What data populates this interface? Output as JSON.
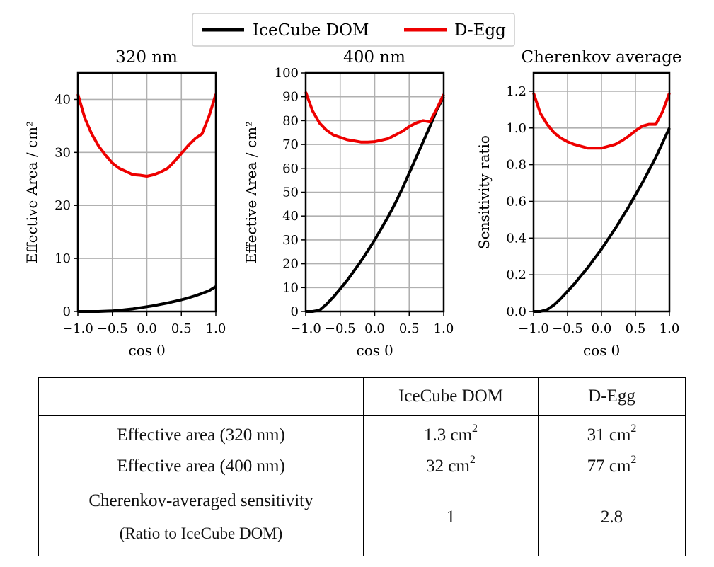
{
  "legend": [
    {
      "label": "IceCube DOM",
      "color": "#000000"
    },
    {
      "label": "D-Egg",
      "color": "#ee0000"
    }
  ],
  "chart_data": [
    {
      "type": "line",
      "title": "320 nm",
      "xlabel": "cos θ",
      "ylabel": "Effective Area / cm²",
      "xlim": [
        -1.0,
        1.0
      ],
      "ylim": [
        0,
        45
      ],
      "xticks": [
        "−1.0",
        "−0.5",
        "0.0",
        "0.5",
        "1.0"
      ],
      "xtick_values": [
        -1.0,
        -0.5,
        0.0,
        0.5,
        1.0
      ],
      "yticks": [
        "0",
        "10",
        "20",
        "30",
        "40"
      ],
      "ytick_values": [
        0,
        10,
        20,
        30,
        40
      ],
      "grid": true,
      "x": [
        -1.0,
        -0.9,
        -0.8,
        -0.7,
        -0.6,
        -0.5,
        -0.4,
        -0.3,
        -0.2,
        -0.1,
        0.0,
        0.1,
        0.2,
        0.3,
        0.4,
        0.5,
        0.6,
        0.7,
        0.8,
        0.9,
        1.0
      ],
      "series": [
        {
          "name": "IceCube DOM",
          "values": [
            0.0,
            0.0,
            0.0,
            0.0,
            0.05,
            0.1,
            0.2,
            0.35,
            0.5,
            0.7,
            0.9,
            1.1,
            1.35,
            1.6,
            1.9,
            2.2,
            2.55,
            2.95,
            3.4,
            3.9,
            4.7
          ]
        },
        {
          "name": "D-Egg",
          "values": [
            41.0,
            36.5,
            33.5,
            31.2,
            29.5,
            28.0,
            27.0,
            26.4,
            25.8,
            25.7,
            25.5,
            25.8,
            26.3,
            27.0,
            28.3,
            29.8,
            31.3,
            32.6,
            33.5,
            36.8,
            41.0
          ]
        }
      ]
    },
    {
      "type": "line",
      "title": "400 nm",
      "xlabel": "cos θ",
      "ylabel": "Effective Area / cm²",
      "xlim": [
        -1.0,
        1.0
      ],
      "ylim": [
        0,
        100
      ],
      "xticks": [
        "−1.0",
        "−0.5",
        "0.0",
        "0.5",
        "1.0"
      ],
      "xtick_values": [
        -1.0,
        -0.5,
        0.0,
        0.5,
        1.0
      ],
      "yticks": [
        "0",
        "10",
        "20",
        "30",
        "40",
        "50",
        "60",
        "70",
        "80",
        "90",
        "100"
      ],
      "ytick_values": [
        0,
        10,
        20,
        30,
        40,
        50,
        60,
        70,
        80,
        90,
        100
      ],
      "grid": true,
      "x": [
        -1.0,
        -0.9,
        -0.8,
        -0.7,
        -0.6,
        -0.5,
        -0.4,
        -0.3,
        -0.2,
        -0.1,
        0.0,
        0.1,
        0.2,
        0.3,
        0.4,
        0.5,
        0.6,
        0.7,
        0.8,
        0.9,
        1.0
      ],
      "series": [
        {
          "name": "IceCube DOM",
          "values": [
            0.0,
            0.0,
            0.5,
            3.0,
            6.0,
            9.5,
            13.0,
            17.0,
            21.0,
            25.5,
            30.0,
            35.0,
            40.0,
            45.5,
            51.5,
            58.0,
            64.5,
            71.0,
            77.5,
            84.5,
            90.0
          ]
        },
        {
          "name": "D-Egg",
          "values": [
            92.0,
            84.0,
            79.0,
            76.0,
            74.0,
            73.0,
            72.0,
            71.5,
            71.0,
            71.0,
            71.2,
            71.8,
            72.5,
            74.0,
            75.5,
            77.5,
            79.0,
            80.0,
            79.5,
            85.0,
            91.0
          ]
        }
      ]
    },
    {
      "type": "line",
      "title": "Cherenkov average",
      "xlabel": "cos θ",
      "ylabel": "Sensitivity ratio",
      "xlim": [
        -1.0,
        1.0
      ],
      "ylim": [
        0,
        1.3
      ],
      "xticks": [
        "−1.0",
        "−0.5",
        "0.0",
        "0.5",
        "1.0"
      ],
      "xtick_values": [
        -1.0,
        -0.5,
        0.0,
        0.5,
        1.0
      ],
      "yticks": [
        "0.0",
        "0.2",
        "0.4",
        "0.6",
        "0.8",
        "1.0",
        "1.2"
      ],
      "ytick_values": [
        0.0,
        0.2,
        0.4,
        0.6,
        0.8,
        1.0,
        1.2
      ],
      "grid": true,
      "x": [
        -1.0,
        -0.9,
        -0.8,
        -0.7,
        -0.6,
        -0.5,
        -0.4,
        -0.3,
        -0.2,
        -0.1,
        0.0,
        0.1,
        0.2,
        0.3,
        0.4,
        0.5,
        0.6,
        0.7,
        0.8,
        0.9,
        1.0
      ],
      "series": [
        {
          "name": "IceCube DOM",
          "values": [
            0.0,
            0.0,
            0.01,
            0.035,
            0.07,
            0.11,
            0.15,
            0.195,
            0.24,
            0.29,
            0.34,
            0.395,
            0.45,
            0.51,
            0.57,
            0.635,
            0.7,
            0.77,
            0.84,
            0.92,
            1.0
          ]
        },
        {
          "name": "D-Egg",
          "values": [
            1.19,
            1.08,
            1.02,
            0.975,
            0.945,
            0.925,
            0.91,
            0.9,
            0.89,
            0.89,
            0.89,
            0.9,
            0.91,
            0.93,
            0.955,
            0.985,
            1.01,
            1.02,
            1.02,
            1.09,
            1.19
          ]
        }
      ]
    }
  ],
  "table": {
    "headers": [
      "",
      "IceCube DOM",
      "D-Egg"
    ],
    "rows": [
      {
        "label": "Effective area (320 nm)",
        "icecube": "1.3 cm",
        "icecube_sup": "2",
        "degg": "31 cm",
        "degg_sup": "2"
      },
      {
        "label": "Effective area (400 nm)",
        "icecube": "32 cm",
        "icecube_sup": "2",
        "degg": "77 cm",
        "degg_sup": "2"
      },
      {
        "label": "Cherenkov-averaged sensitivity",
        "label2": "(Ratio to IceCube DOM)",
        "icecube": "1",
        "degg": "2.8"
      }
    ]
  }
}
